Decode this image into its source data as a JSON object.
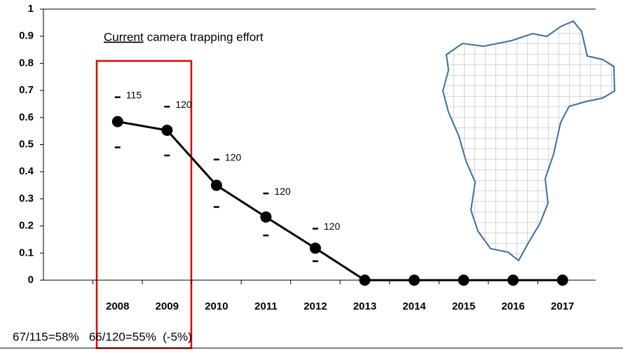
{
  "chart_data": {
    "type": "line",
    "title_underlined": "Current",
    "title_rest": "camera trapping effort",
    "note": "67/115=58%   66/120=55%  (-5%)",
    "categories": [
      null,
      "2008",
      "2009",
      "2010",
      "2011",
      "2012",
      "2013",
      "2014",
      "2015",
      "2016",
      "2017"
    ],
    "values": [
      null,
      0.585,
      0.553,
      0.35,
      0.233,
      0.118,
      0,
      0,
      0,
      0,
      0
    ],
    "upper": [
      null,
      0.675,
      0.64,
      0.445,
      0.32,
      0.19,
      null,
      null,
      null,
      null,
      null
    ],
    "lower": [
      null,
      0.49,
      0.46,
      0.27,
      0.165,
      0.07,
      null,
      null,
      null,
      null,
      null
    ],
    "sample_sizes": [
      null,
      115,
      120,
      120,
      120,
      120,
      null,
      null,
      null,
      null,
      null
    ],
    "color": "#000000",
    "ylim": [
      0,
      1
    ],
    "yticks": [
      0,
      0.1,
      0.2,
      0.3,
      0.4,
      0.5,
      0.6,
      0.7,
      0.8,
      0.9,
      1
    ]
  }
}
